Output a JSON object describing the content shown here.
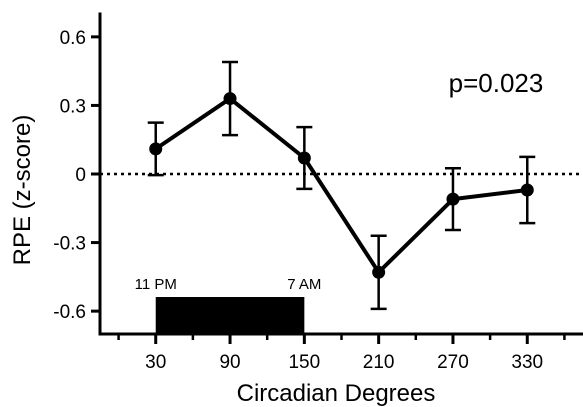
{
  "chart_data": {
    "type": "line",
    "title": "",
    "xlabel": "Circadian Degrees",
    "ylabel": "RPE (z-score)",
    "annotation": "p=0.023",
    "x": [
      30,
      90,
      150,
      210,
      270,
      330
    ],
    "y": [
      0.11,
      0.33,
      0.07,
      -0.43,
      -0.11,
      -0.07
    ],
    "error_bars": [
      0.115,
      0.16,
      0.135,
      0.16,
      0.135,
      0.145
    ],
    "x_ticks": [
      30,
      90,
      150,
      210,
      270,
      330
    ],
    "x_minor_ticks": [
      0,
      60,
      120,
      180,
      240,
      300,
      360
    ],
    "x_tick_labels": [
      "30",
      "90",
      "150",
      "210",
      "270",
      "330"
    ],
    "y_ticks": [
      -0.6,
      -0.3,
      0,
      0.3,
      0.6
    ],
    "y_tick_labels": [
      "-0.6",
      "-0.3",
      "0",
      "0.3",
      "0.6"
    ],
    "xlim": [
      -15,
      375
    ],
    "ylim": [
      -0.7,
      0.7
    ],
    "reference_line": {
      "y": 0,
      "style": "dotted"
    },
    "sleep_bar": {
      "x_start": 30,
      "x_end": 150,
      "start_label": "11 PM",
      "end_label": "7 AM"
    },
    "grid": false,
    "legend": "none",
    "colors": {
      "line": "#000000",
      "sleep_bar": "#000000"
    }
  }
}
